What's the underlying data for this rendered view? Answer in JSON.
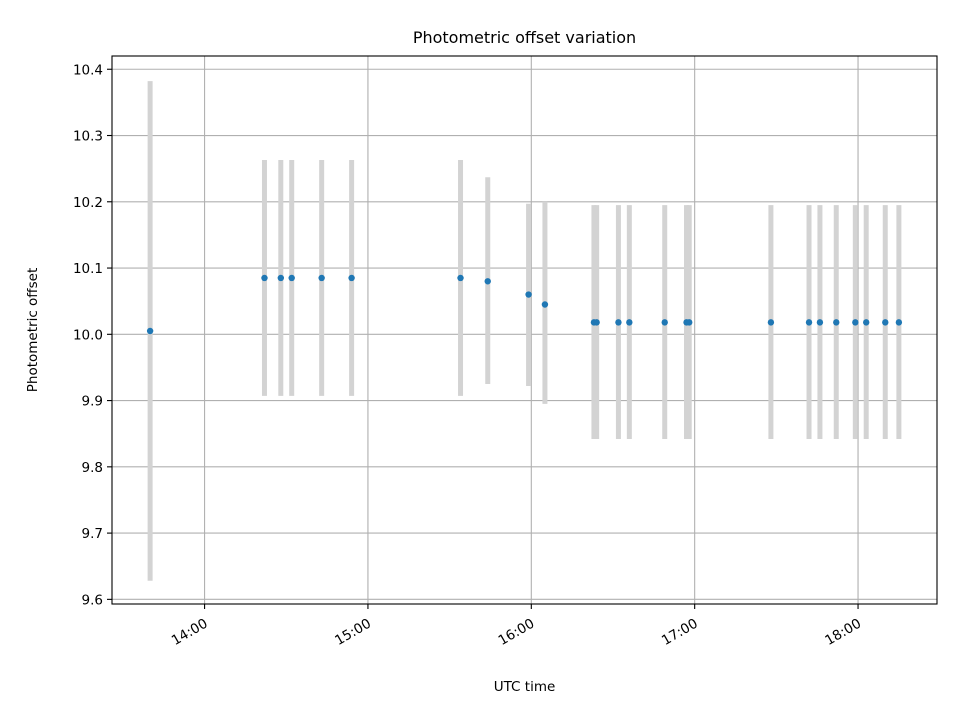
{
  "chart_data": {
    "type": "scatter",
    "title": "Photometric offset variation",
    "xlabel": "UTC time",
    "ylabel": "Photometric offset",
    "xlim": [
      "13:26",
      "18:29"
    ],
    "ylim": [
      9.593,
      10.42
    ],
    "grid": true,
    "x_ticks": [
      "14:00",
      "15:00",
      "16:00",
      "17:00",
      "18:00"
    ],
    "y_ticks": [
      "9.6",
      "9.7",
      "9.8",
      "9.9",
      "10.0",
      "10.1",
      "10.2",
      "10.3",
      "10.4"
    ],
    "series": [
      {
        "marker_color": "#1f77b4",
        "errorbar_color": "#d3d3d3",
        "points": [
          {
            "x": "13:40",
            "y": 10.005,
            "ylow": 9.628,
            "yhigh": 10.382
          },
          {
            "x": "14:22",
            "y": 10.085,
            "ylow": 9.907,
            "yhigh": 10.263
          },
          {
            "x": "14:28",
            "y": 10.085,
            "ylow": 9.907,
            "yhigh": 10.263
          },
          {
            "x": "14:32",
            "y": 10.085,
            "ylow": 9.907,
            "yhigh": 10.263
          },
          {
            "x": "14:43",
            "y": 10.085,
            "ylow": 9.907,
            "yhigh": 10.263
          },
          {
            "x": "14:54",
            "y": 10.085,
            "ylow": 9.907,
            "yhigh": 10.263
          },
          {
            "x": "15:34",
            "y": 10.085,
            "ylow": 9.907,
            "yhigh": 10.263
          },
          {
            "x": "15:44",
            "y": 10.08,
            "ylow": 9.925,
            "yhigh": 10.237
          },
          {
            "x": "15:59",
            "y": 10.06,
            "ylow": 9.922,
            "yhigh": 10.197
          },
          {
            "x": "16:05",
            "y": 10.045,
            "ylow": 9.895,
            "yhigh": 10.2
          },
          {
            "x": "16:23",
            "y": 10.018,
            "ylow": 9.842,
            "yhigh": 10.195
          },
          {
            "x": "16:24",
            "y": 10.018,
            "ylow": 9.842,
            "yhigh": 10.195
          },
          {
            "x": "16:32",
            "y": 10.018,
            "ylow": 9.842,
            "yhigh": 10.195
          },
          {
            "x": "16:36",
            "y": 10.018,
            "ylow": 9.842,
            "yhigh": 10.195
          },
          {
            "x": "16:49",
            "y": 10.018,
            "ylow": 9.842,
            "yhigh": 10.195
          },
          {
            "x": "16:57",
            "y": 10.018,
            "ylow": 9.842,
            "yhigh": 10.195
          },
          {
            "x": "16:58",
            "y": 10.018,
            "ylow": 9.842,
            "yhigh": 10.195
          },
          {
            "x": "17:28",
            "y": 10.018,
            "ylow": 9.842,
            "yhigh": 10.195
          },
          {
            "x": "17:42",
            "y": 10.018,
            "ylow": 9.842,
            "yhigh": 10.195
          },
          {
            "x": "17:46",
            "y": 10.018,
            "ylow": 9.842,
            "yhigh": 10.195
          },
          {
            "x": "17:52",
            "y": 10.018,
            "ylow": 9.842,
            "yhigh": 10.195
          },
          {
            "x": "17:59",
            "y": 10.018,
            "ylow": 9.842,
            "yhigh": 10.195
          },
          {
            "x": "18:03",
            "y": 10.018,
            "ylow": 9.842,
            "yhigh": 10.195
          },
          {
            "x": "18:10",
            "y": 10.018,
            "ylow": 9.842,
            "yhigh": 10.195
          },
          {
            "x": "18:15",
            "y": 10.018,
            "ylow": 9.842,
            "yhigh": 10.195
          }
        ]
      }
    ]
  }
}
